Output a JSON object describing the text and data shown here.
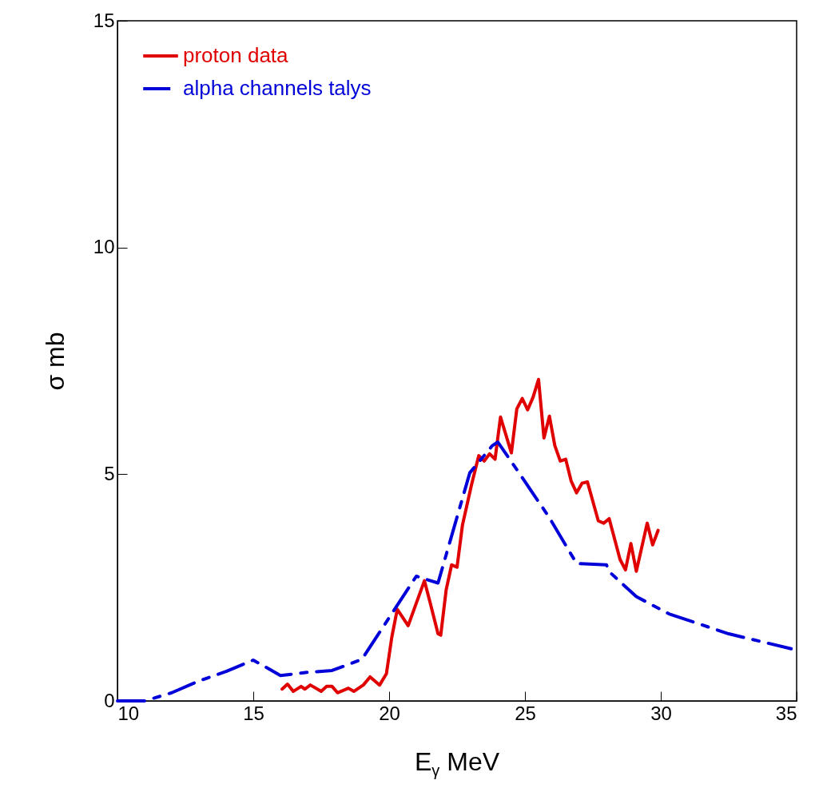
{
  "chart_data": {
    "type": "line",
    "xlabel": "E$_{γ}$ MeV",
    "ylabel": "σ mb",
    "xlim": [
      10,
      35
    ],
    "xticks": [
      10,
      15,
      20,
      25,
      30,
      35
    ],
    "ylim": [
      0,
      15
    ],
    "yticks": [
      0,
      5,
      10,
      15
    ],
    "grid": false,
    "legend": "top left",
    "marker": "none",
    "series": [
      {
        "name": "proton data",
        "color": "#e00000",
        "line_style": "solid",
        "x": [
          16.06,
          16.26,
          16.47,
          16.76,
          16.9,
          17.1,
          17.5,
          17.7,
          17.9,
          18.1,
          18.5,
          18.7,
          19.05,
          19.3,
          19.65,
          19.9,
          20.1,
          20.3,
          20.7,
          21.3,
          21.5,
          21.8,
          21.9,
          22.1,
          22.3,
          22.5,
          22.7,
          23.03,
          23.3,
          23.5,
          23.7,
          23.9,
          24.1,
          24.5,
          24.7,
          24.9,
          25.1,
          25.3,
          25.5,
          25.7,
          25.9,
          26.1,
          26.3,
          26.5,
          26.7,
          26.9,
          27.1,
          27.3,
          27.7,
          27.9,
          28.1,
          28.5,
          28.7,
          28.9,
          29.1,
          29.5,
          29.7,
          29.9
        ],
        "values": [
          0.26,
          0.37,
          0.21,
          0.32,
          0.26,
          0.35,
          0.21,
          0.32,
          0.32,
          0.18,
          0.28,
          0.21,
          0.35,
          0.53,
          0.35,
          0.6,
          1.41,
          2.02,
          1.66,
          2.65,
          2.19,
          1.48,
          1.45,
          2.45,
          3.0,
          2.95,
          3.88,
          4.76,
          5.41,
          5.29,
          5.45,
          5.33,
          6.26,
          5.47,
          6.44,
          6.67,
          6.42,
          6.7,
          7.09,
          5.8,
          6.28,
          5.63,
          5.29,
          5.33,
          4.85,
          4.59,
          4.8,
          4.83,
          3.97,
          3.92,
          4.02,
          3.12,
          2.89,
          3.47,
          2.86,
          3.92,
          3.44,
          3.76
        ]
      },
      {
        "name": "alpha channels talys",
        "color": "#0000d8",
        "line_style": "dashed",
        "x": [
          10,
          11,
          12,
          13,
          14,
          15,
          16,
          17,
          17.9,
          18.4,
          19,
          21,
          21.8,
          22.97,
          23.8,
          24,
          24.85,
          25.9,
          26.9,
          28,
          28.1,
          29.1,
          30.3,
          32.5,
          34.8
        ],
        "values": [
          0,
          0,
          0.18,
          0.44,
          0.65,
          0.9,
          0.56,
          0.63,
          0.67,
          0.78,
          0.92,
          2.75,
          2.6,
          5.03,
          5.63,
          5.71,
          4.97,
          4.04,
          3.03,
          3.0,
          2.85,
          2.3,
          1.92,
          1.48,
          1.15
        ]
      }
    ]
  }
}
